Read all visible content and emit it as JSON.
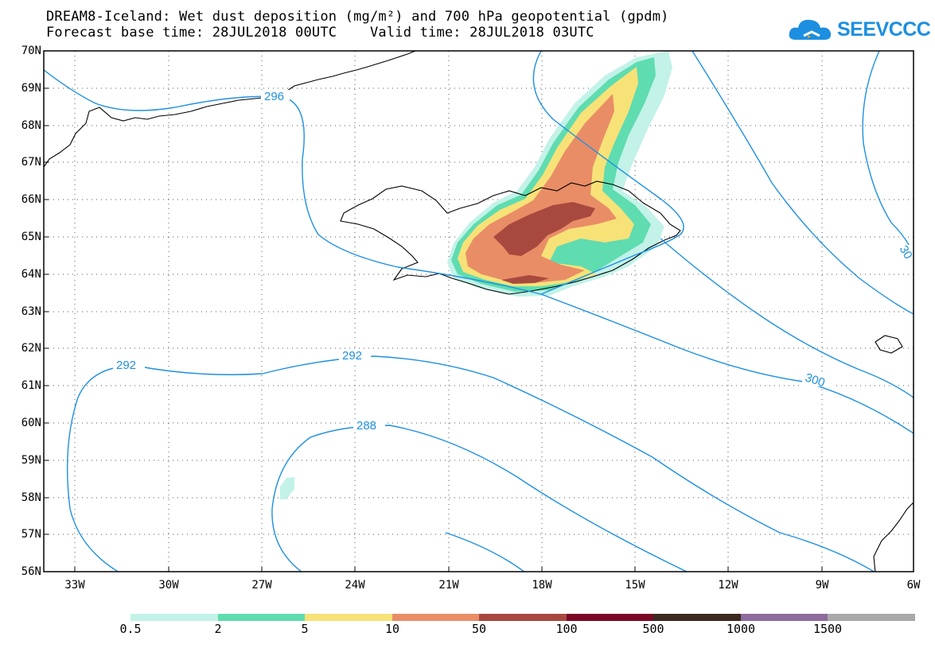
{
  "title": {
    "line1": "DREAM8-Iceland: Wet dust deposition (mg/m²) and 700 hPa geopotential (gpdm)",
    "line2": "Forecast base time: 28JUL2018 00UTC    Valid time: 28JUL2018 03UTC"
  },
  "logo": {
    "text": "SEEVCCC",
    "icon": "cloud-icon",
    "color": "#1d8fe0"
  },
  "map": {
    "lat_labels": [
      "70N",
      "69N",
      "68N",
      "67N",
      "66N",
      "65N",
      "64N",
      "63N",
      "62N",
      "61N",
      "60N",
      "59N",
      "58N",
      "57N",
      "56N"
    ],
    "lon_labels": [
      "33W",
      "30W",
      "27W",
      "24W",
      "21W",
      "18W",
      "15W",
      "12W",
      "9W",
      "6W"
    ],
    "contour_labels": [
      "296",
      "292",
      "292",
      "288",
      "300",
      "30"
    ],
    "contour_color": "#1e90e0"
  },
  "colorbar": {
    "labels": [
      "0.5",
      "2",
      "5",
      "10",
      "50",
      "100",
      "500",
      "1000",
      "1500"
    ],
    "colors": [
      "#c2f2e8",
      "#5fdcb0",
      "#f7e278",
      "#e98d67",
      "#a8493f",
      "#7a0824",
      "#3b2a1e",
      "#8e6c9b",
      "#a9a9a9"
    ]
  }
}
